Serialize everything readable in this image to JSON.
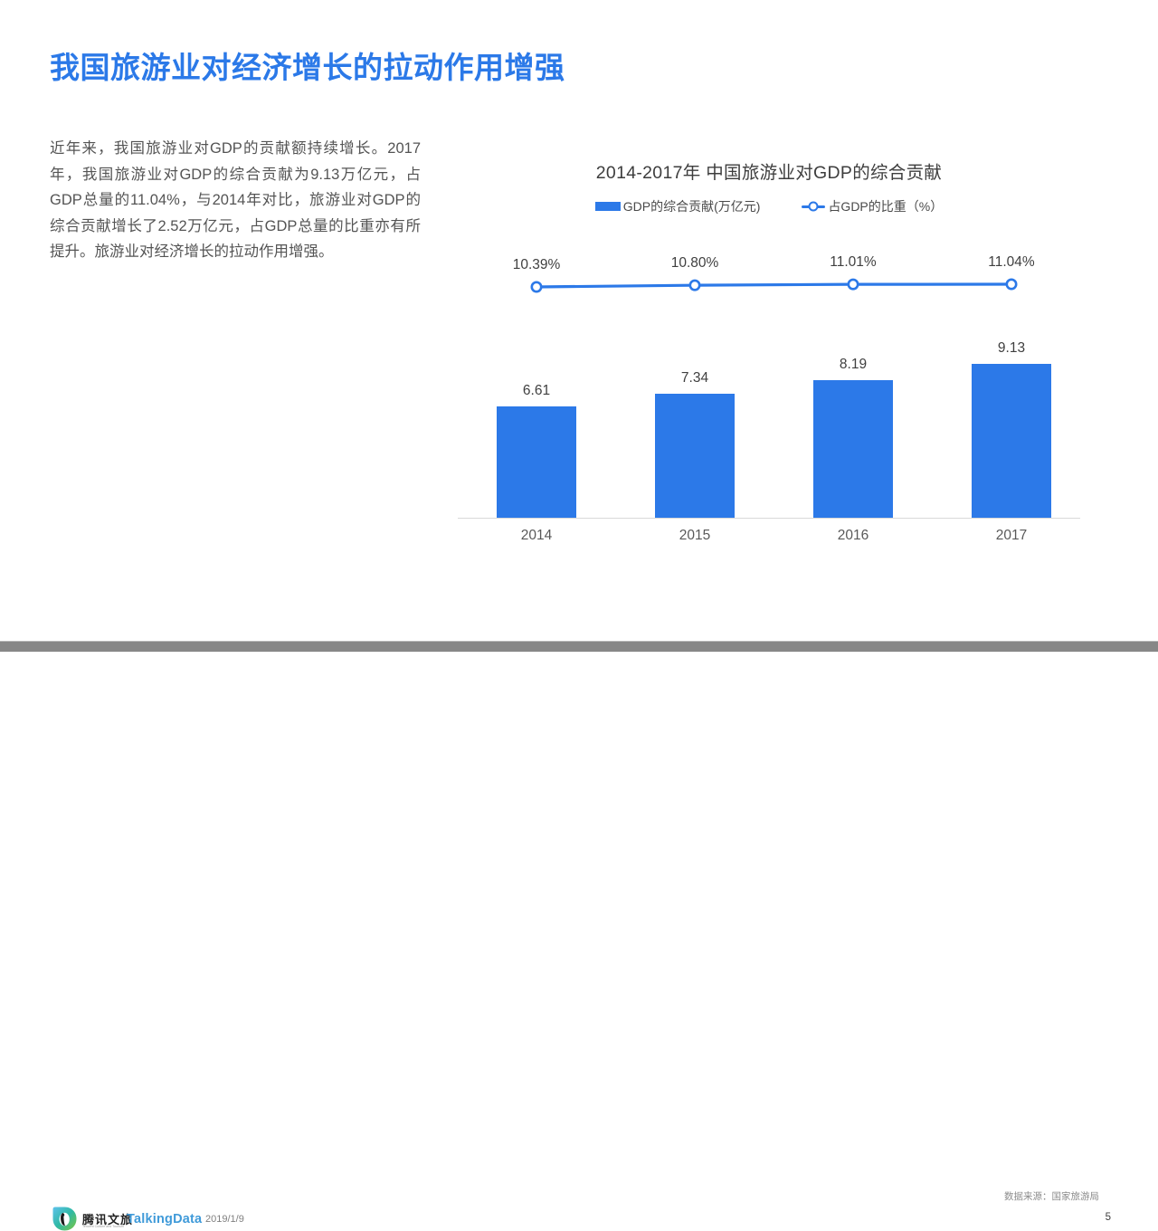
{
  "title": "我国旅游业对经济增长的拉动作用增强",
  "body_text": "近年来，我国旅游业对GDP的贡献额持续增长。2017年，我国旅游业对GDP的综合贡献为9.13万亿元，占GDP总量的11.04%，与2014年对比，旅游业对GDP的综合贡献增长了2.52万亿元，占GDP总量的比重亦有所提升。旅游业对经济增长的拉动作用增强。",
  "chart_data": {
    "type": "bar",
    "title": "2014-2017年 中国旅游业对GDP的综合贡献",
    "categories": [
      "2014",
      "2015",
      "2016",
      "2017"
    ],
    "series": [
      {
        "name": "GDP的综合贡献(万亿元)",
        "type": "bar",
        "values": [
          6.61,
          7.34,
          8.19,
          9.13
        ],
        "labels": [
          "6.61",
          "7.34",
          "8.19",
          "9.13"
        ],
        "color": "#2c79e8"
      },
      {
        "name": "占GDP的比重（%）",
        "type": "line",
        "values": [
          10.39,
          10.8,
          11.01,
          11.04
        ],
        "labels": [
          "10.39%",
          "10.80%",
          "11.01%",
          "11.04%"
        ],
        "color": "#2c79e8",
        "marker": "open-circle"
      }
    ],
    "legend_position": "top",
    "grid": false,
    "bar_axis_min": 0
  },
  "footer": {
    "brand_cn": "腾讯文旅",
    "brand_sub": "Tencent Culture and Tourism",
    "brand_td": "TalkingData",
    "date": "2019/1/9",
    "source": "数据来源：国家旅游局",
    "page": "5"
  },
  "colors": {
    "accent_blue": "#2c79e8",
    "title_blue": "#2b79e8",
    "body_gray": "#545454",
    "axis_gray": "#d9d9d9",
    "talkingdata_blue": "#3f9ad9",
    "bottom_bar_gray": "#878787"
  }
}
